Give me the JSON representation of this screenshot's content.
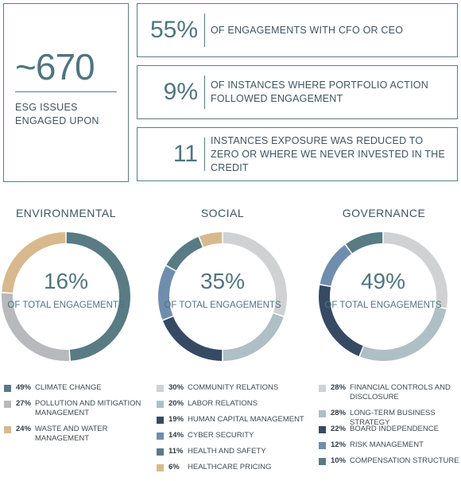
{
  "summary": {
    "big_number": "~670",
    "big_label": "ESG ISSUES ENGAGED UPON"
  },
  "stats": [
    {
      "value": "55%",
      "text": "OF ENGAGEMENTS WITH CFO OR CEO"
    },
    {
      "value": "9%",
      "text": "OF INSTANCES WHERE PORTFOLIO ACTION FOLLOWED ENGAGEMENT"
    },
    {
      "value": "11",
      "text": "INSTANCES EXPOSURE WAS REDUCED TO ZERO OR WHERE WE NEVER INVESTED IN THE CREDIT"
    }
  ],
  "chart_data": [
    {
      "type": "pie",
      "title": "ENVIRONMENTAL",
      "center_value": "16%",
      "center_label": "OF TOTAL ENGAGEMENTS",
      "series": [
        {
          "name": "CLIMATE CHANGE",
          "value": 49,
          "label": "49%",
          "color": "#587b84"
        },
        {
          "name": "POLLUTION AND MITIGATION MANAGEMENT",
          "value": 27,
          "label": "27%",
          "color": "#b7b9bc"
        },
        {
          "name": "WASTE AND WATER MANAGEMENT",
          "value": 24,
          "label": "24%",
          "color": "#d8b98e"
        }
      ]
    },
    {
      "type": "pie",
      "title": "SOCIAL",
      "center_value": "35%",
      "center_label": "OF TOTAL ENGAGEMENTS",
      "series": [
        {
          "name": "COMMUNITY RELATIONS",
          "value": 30,
          "label": "30%",
          "color": "#cfd1d3"
        },
        {
          "name": "LABOR RELATIONS",
          "value": 20,
          "label": "20%",
          "color": "#aebfc5"
        },
        {
          "name": "HUMAN CAPITAL MANAGEMENT",
          "value": 19,
          "label": "19%",
          "color": "#364a64"
        },
        {
          "name": "CYBER SECURITY",
          "value": 14,
          "label": "14%",
          "color": "#6f8eae"
        },
        {
          "name": "HEALTH AND SAFETY",
          "value": 11,
          "label": "11%",
          "color": "#587b84"
        },
        {
          "name": "HEALTHCARE PRICING",
          "value": 6,
          "label": "6%",
          "color": "#d8b98e"
        }
      ]
    },
    {
      "type": "pie",
      "title": "GOVERNANCE",
      "center_value": "49%",
      "center_label": "OF TOTAL ENGAGEMENTS",
      "series": [
        {
          "name": "FINANCIAL CONTROLS AND DISCLOSURE",
          "value": 28,
          "label": "28%",
          "color": "#cfd1d3"
        },
        {
          "name": "LONG-TERM BUSINESS STRATEGY",
          "value": 28,
          "label": "28%",
          "color": "#aebfc5"
        },
        {
          "name": "BOARD INDEPENDENCE",
          "value": 22,
          "label": "22%",
          "color": "#364a64"
        },
        {
          "name": "RISK MANAGEMENT",
          "value": 12,
          "label": "12%",
          "color": "#6f8eae"
        },
        {
          "name": "COMPENSATION STRUCTURE",
          "value": 10,
          "label": "10%",
          "color": "#587b84"
        }
      ]
    }
  ]
}
